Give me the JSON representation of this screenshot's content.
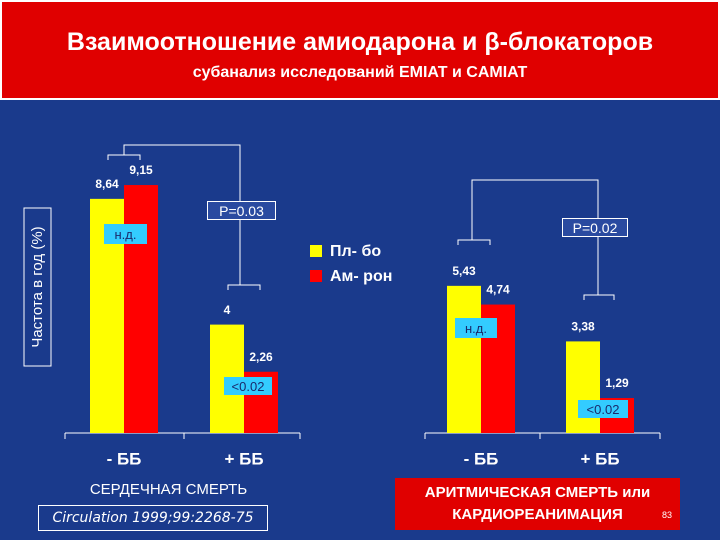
{
  "chart_data": {
    "type": "bar",
    "title": "Взаимоотношение амиодарона и β-блокаторов",
    "subtitle": "субанализ исследований EMIAT и CAMIAT",
    "ylabel": "Частота в год (%)",
    "categories": [
      "- ББ",
      "+ ББ",
      "- ББ",
      "+ ББ"
    ],
    "group_labels": [
      "СЕРДЕЧНАЯ СМЕРТЬ",
      "АРИТМИЧЕСКАЯ СМЕРТЬ или КАРДИОРЕАНИМАЦИЯ"
    ],
    "series": [
      {
        "name": "Пл- бо",
        "color": "#ffff00",
        "values": [
          8.64,
          4,
          5.43,
          3.38
        ],
        "value_labels": [
          "8,64",
          "4",
          "5,43",
          "3,38"
        ]
      },
      {
        "name": "Ам- рон",
        "color": "#ff0000",
        "values": [
          9.15,
          2.26,
          4.74,
          1.29
        ],
        "value_labels": [
          "9,15",
          "2,26",
          "4,74",
          "1,29"
        ]
      }
    ],
    "ylim": [
      0,
      10
    ],
    "annotations": [
      "P=0.03",
      "P=0.02",
      "н.д.",
      "н.д.",
      "<0.02",
      "<0.02"
    ],
    "citation": "Circulation 1999;99:2268-75",
    "page_number": "83"
  }
}
